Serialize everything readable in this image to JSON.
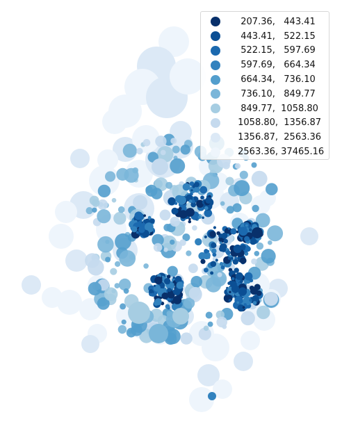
{
  "legend": {
    "entries": [
      {
        "label": "  207.36,   443.41",
        "color": "#08306b"
      },
      {
        "label": "  443.41,   522.15",
        "color": "#0b4f94"
      },
      {
        "label": "  522.15,   597.69",
        "color": "#1b69af"
      },
      {
        "label": "  597.69,   664.34",
        "color": "#3282be"
      },
      {
        "label": "  664.34,   736.10",
        "color": "#539ecd"
      },
      {
        "label": "  736.10,   849.77",
        "color": "#7ab6d9"
      },
      {
        "label": "  849.77,  1058.80",
        "color": "#a6cde2"
      },
      {
        "label": " 1058.80,  1356.87",
        "color": "#c5daee"
      },
      {
        "label": " 1356.87,  2563.36",
        "color": "#dce9f6"
      },
      {
        "label": " 2563.36, 37465.16",
        "color": "#eef5fc"
      }
    ]
  },
  "colors": {
    "background": "#ffffff",
    "lightest": "#eef5fc",
    "darkest": "#08306b"
  }
}
